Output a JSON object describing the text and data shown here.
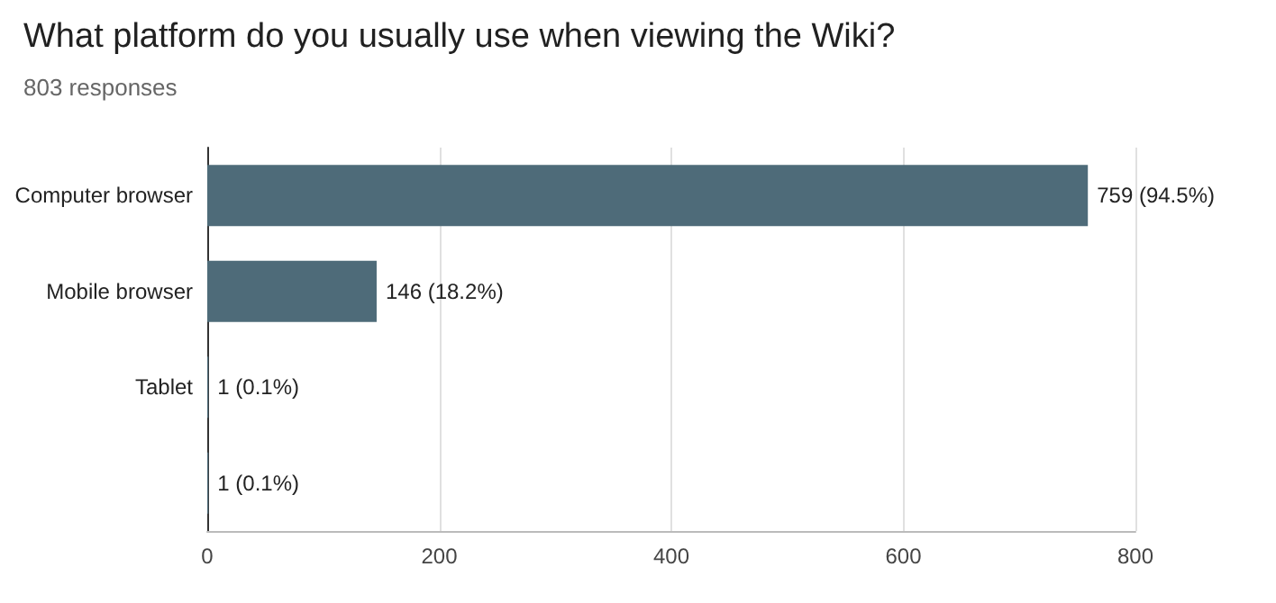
{
  "chart_data": {
    "type": "bar",
    "orientation": "horizontal",
    "title": "What platform do you usually use when viewing the Wiki?",
    "subtitle": "803 responses",
    "categories": [
      "Computer browser",
      "Mobile browser",
      "Tablet",
      null
    ],
    "values": [
      759,
      146,
      1,
      1
    ],
    "value_labels": [
      "759 (94.5%)",
      "146 (18.2%)",
      "1 (0.1%)",
      "1 (0.1%)"
    ],
    "color": "#4e6b79",
    "xlim": [
      0,
      800
    ],
    "xticks": [
      0,
      200,
      400,
      600,
      800
    ],
    "grid": "x"
  }
}
